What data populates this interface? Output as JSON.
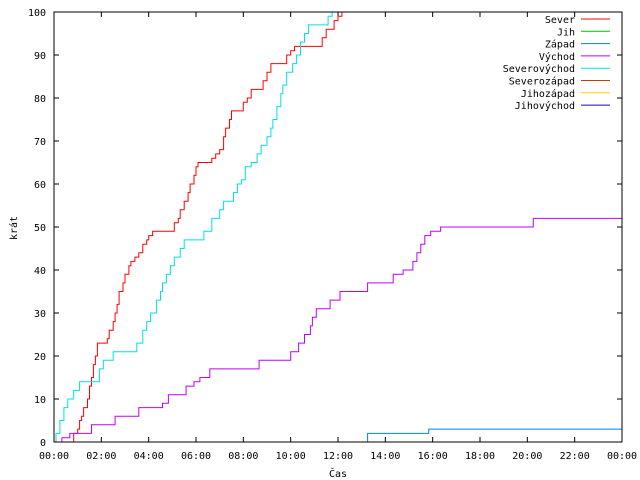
{
  "chart_data": {
    "type": "line",
    "title": "",
    "xlabel": "Čas",
    "ylabel": "krát",
    "xlim": [
      "00:00",
      "24:00"
    ],
    "ylim": [
      0,
      100
    ],
    "x_ticks": [
      "00:00",
      "02:00",
      "04:00",
      "06:00",
      "08:00",
      "10:00",
      "12:00",
      "14:00",
      "16:00",
      "18:00",
      "20:00",
      "22:00",
      "00:00"
    ],
    "y_ticks": [
      0,
      10,
      20,
      30,
      40,
      50,
      60,
      70,
      80,
      90,
      100
    ],
    "grid": false,
    "legend_position": "top-right",
    "series": [
      {
        "name": "Sever",
        "color": "#ff0000",
        "points": [
          [
            "00:00",
            0
          ],
          [
            "00:45",
            0
          ],
          [
            "00:50",
            2
          ],
          [
            "01:00",
            3
          ],
          [
            "01:05",
            5
          ],
          [
            "01:10",
            6
          ],
          [
            "01:15",
            8
          ],
          [
            "01:25",
            10
          ],
          [
            "01:30",
            13
          ],
          [
            "01:35",
            15
          ],
          [
            "01:40",
            18
          ],
          [
            "01:45",
            20
          ],
          [
            "01:50",
            23
          ],
          [
            "02:10",
            23
          ],
          [
            "02:15",
            24
          ],
          [
            "02:20",
            26
          ],
          [
            "02:30",
            28
          ],
          [
            "02:35",
            30
          ],
          [
            "02:40",
            32
          ],
          [
            "02:45",
            35
          ],
          [
            "02:55",
            37
          ],
          [
            "03:00",
            39
          ],
          [
            "03:10",
            41
          ],
          [
            "03:15",
            42
          ],
          [
            "03:25",
            43
          ],
          [
            "03:35",
            44
          ],
          [
            "03:45",
            46
          ],
          [
            "03:55",
            47
          ],
          [
            "04:00",
            48
          ],
          [
            "04:10",
            49
          ],
          [
            "05:00",
            49
          ],
          [
            "05:05",
            51
          ],
          [
            "05:15",
            52
          ],
          [
            "05:20",
            54
          ],
          [
            "05:30",
            56
          ],
          [
            "05:40",
            58
          ],
          [
            "05:45",
            60
          ],
          [
            "05:55",
            62
          ],
          [
            "06:00",
            64
          ],
          [
            "06:05",
            65
          ],
          [
            "06:30",
            65
          ],
          [
            "06:40",
            66
          ],
          [
            "06:50",
            67
          ],
          [
            "07:00",
            68
          ],
          [
            "07:10",
            71
          ],
          [
            "07:15",
            73
          ],
          [
            "07:25",
            75
          ],
          [
            "07:30",
            77
          ],
          [
            "07:50",
            77
          ],
          [
            "08:00",
            79
          ],
          [
            "08:10",
            80
          ],
          [
            "08:20",
            82
          ],
          [
            "08:40",
            82
          ],
          [
            "08:50",
            84
          ],
          [
            "09:00",
            86
          ],
          [
            "09:10",
            88
          ],
          [
            "09:45",
            88
          ],
          [
            "09:50",
            90
          ],
          [
            "10:00",
            91
          ],
          [
            "10:10",
            92
          ],
          [
            "11:15",
            92
          ],
          [
            "11:20",
            94
          ],
          [
            "11:30",
            96
          ],
          [
            "11:40",
            96
          ],
          [
            "11:50",
            98
          ],
          [
            "12:00",
            99
          ],
          [
            "12:10",
            100
          ]
        ]
      },
      {
        "name": "Jih",
        "color": "#00c000",
        "points": []
      },
      {
        "name": "Západ",
        "color": "#0080ff",
        "points": [
          [
            "00:00",
            0
          ],
          [
            "13:10",
            0
          ],
          [
            "13:15",
            2
          ],
          [
            "15:45",
            2
          ],
          [
            "15:50",
            3
          ],
          [
            "24:00",
            3
          ]
        ]
      },
      {
        "name": "Východ",
        "color": "#c000ff",
        "points": [
          [
            "00:00",
            0
          ],
          [
            "00:15",
            0
          ],
          [
            "00:20",
            1
          ],
          [
            "00:40",
            2
          ],
          [
            "01:30",
            2
          ],
          [
            "01:35",
            4
          ],
          [
            "02:30",
            4
          ],
          [
            "02:35",
            6
          ],
          [
            "03:30",
            6
          ],
          [
            "03:35",
            8
          ],
          [
            "04:30",
            8
          ],
          [
            "04:35",
            9
          ],
          [
            "04:50",
            11
          ],
          [
            "05:30",
            11
          ],
          [
            "05:35",
            13
          ],
          [
            "05:55",
            14
          ],
          [
            "06:10",
            15
          ],
          [
            "06:30",
            15
          ],
          [
            "06:35",
            17
          ],
          [
            "08:35",
            17
          ],
          [
            "08:40",
            19
          ],
          [
            "09:55",
            19
          ],
          [
            "10:00",
            21
          ],
          [
            "10:15",
            21
          ],
          [
            "10:20",
            23
          ],
          [
            "10:35",
            25
          ],
          [
            "10:50",
            27
          ],
          [
            "10:55",
            29
          ],
          [
            "11:05",
            31
          ],
          [
            "11:35",
            31
          ],
          [
            "11:40",
            33
          ],
          [
            "12:00",
            33
          ],
          [
            "12:05",
            35
          ],
          [
            "13:10",
            35
          ],
          [
            "13:15",
            37
          ],
          [
            "14:10",
            37
          ],
          [
            "14:20",
            39
          ],
          [
            "14:45",
            40
          ],
          [
            "15:00",
            40
          ],
          [
            "15:10",
            42
          ],
          [
            "15:20",
            44
          ],
          [
            "15:30",
            46
          ],
          [
            "15:40",
            48
          ],
          [
            "15:55",
            49
          ],
          [
            "16:20",
            50
          ],
          [
            "20:10",
            50
          ],
          [
            "20:15",
            52
          ],
          [
            "24:00",
            52
          ]
        ]
      },
      {
        "name": "Severovýchod",
        "color": "#00e0e0",
        "points": [
          [
            "00:00",
            0
          ],
          [
            "00:05",
            2
          ],
          [
            "00:15",
            5
          ],
          [
            "00:25",
            8
          ],
          [
            "00:35",
            10
          ],
          [
            "00:50",
            12
          ],
          [
            "01:05",
            14
          ],
          [
            "01:45",
            14
          ],
          [
            "01:55",
            17
          ],
          [
            "02:05",
            19
          ],
          [
            "02:25",
            19
          ],
          [
            "02:30",
            21
          ],
          [
            "03:25",
            21
          ],
          [
            "03:30",
            23
          ],
          [
            "03:45",
            26
          ],
          [
            "03:55",
            28
          ],
          [
            "04:05",
            30
          ],
          [
            "04:20",
            33
          ],
          [
            "04:30",
            35
          ],
          [
            "04:35",
            37
          ],
          [
            "04:45",
            39
          ],
          [
            "04:55",
            41
          ],
          [
            "05:05",
            43
          ],
          [
            "05:20",
            45
          ],
          [
            "05:30",
            47
          ],
          [
            "06:15",
            47
          ],
          [
            "06:20",
            49
          ],
          [
            "06:40",
            52
          ],
          [
            "07:00",
            54
          ],
          [
            "07:10",
            56
          ],
          [
            "07:30",
            56
          ],
          [
            "07:35",
            58
          ],
          [
            "07:45",
            60
          ],
          [
            "07:55",
            61
          ],
          [
            "08:05",
            64
          ],
          [
            "08:20",
            65
          ],
          [
            "08:35",
            67
          ],
          [
            "08:45",
            69
          ],
          [
            "09:00",
            71
          ],
          [
            "09:10",
            73
          ],
          [
            "09:15",
            75
          ],
          [
            "09:25",
            78
          ],
          [
            "09:35",
            81
          ],
          [
            "09:40",
            83
          ],
          [
            "09:50",
            86
          ],
          [
            "10:05",
            88
          ],
          [
            "10:15",
            90
          ],
          [
            "10:25",
            93
          ],
          [
            "10:35",
            95
          ],
          [
            "10:45",
            97
          ],
          [
            "11:25",
            97
          ],
          [
            "11:35",
            99
          ],
          [
            "11:45",
            100
          ]
        ]
      },
      {
        "name": "Severozápad",
        "color": "#c04000",
        "points": []
      },
      {
        "name": "Jihozápad",
        "color": "#ffd000",
        "points": []
      },
      {
        "name": "Jihovýchod",
        "color": "#2000c0",
        "points": []
      }
    ]
  }
}
